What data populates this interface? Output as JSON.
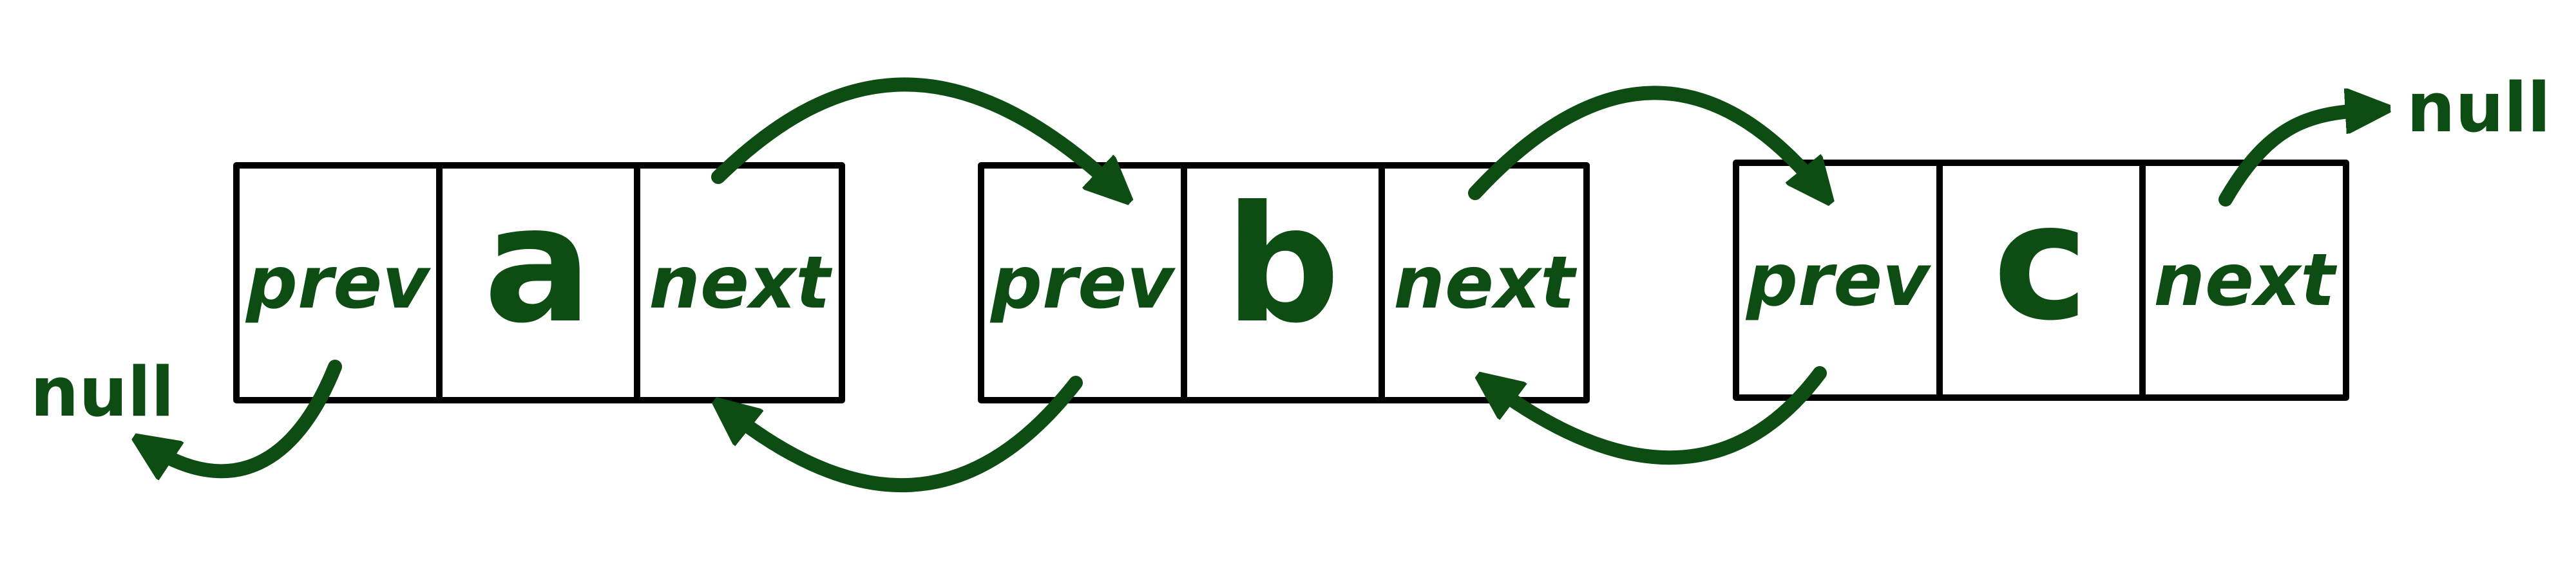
{
  "colors": {
    "ink": "#0d4d14",
    "outline": "#000000"
  },
  "nodes": [
    {
      "prev_label": "prev",
      "value": "a",
      "next_label": "next"
    },
    {
      "prev_label": "prev",
      "value": "b",
      "next_label": "next"
    },
    {
      "prev_label": "prev",
      "value": "c",
      "next_label": "next"
    }
  ],
  "null_left": "null",
  "null_right": "null"
}
